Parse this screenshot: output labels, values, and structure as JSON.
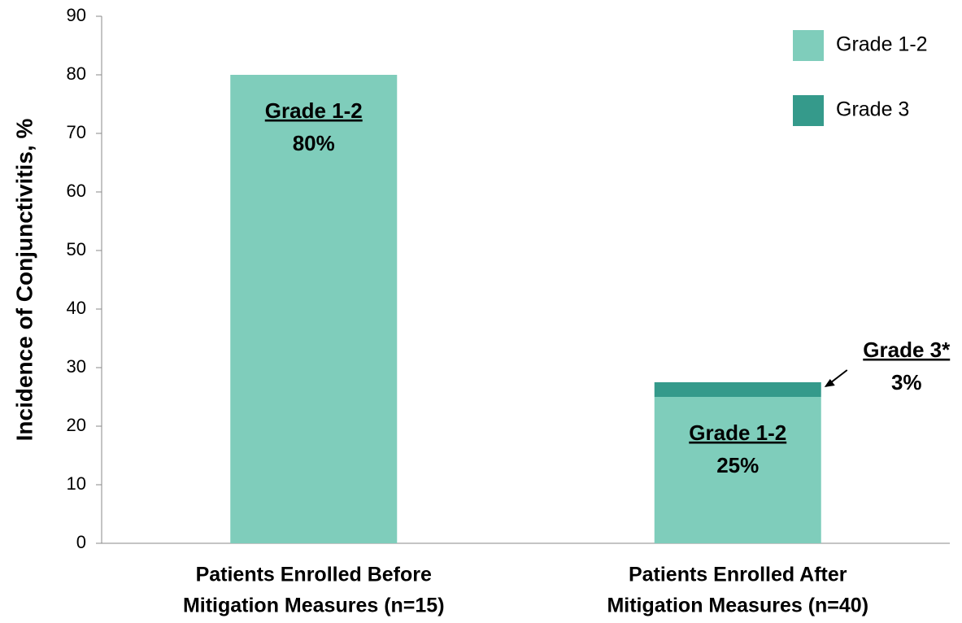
{
  "chart_data": {
    "type": "stacked-bar",
    "y_label": "Incidence of Conjunctivitis, %",
    "categories": [
      [
        "Patients Enrolled Before",
        "Mitigation Measures (n=15)"
      ],
      [
        "Patients Enrolled After",
        "Mitigation Measures (n=40)"
      ]
    ],
    "series": [
      {
        "name": "Grade 1-2",
        "color": "#7fcdbb",
        "values": [
          80,
          25
        ],
        "value_labels": [
          "80%",
          "25%"
        ],
        "label_titles": [
          "Grade 1-2",
          "Grade 1-2"
        ]
      },
      {
        "name": "Grade 3",
        "color": "#359a8b",
        "values": [
          null,
          2.5
        ],
        "value_labels": [
          null,
          "3%"
        ],
        "label_titles": [
          null,
          "Grade 3*"
        ]
      }
    ],
    "ylim": [
      0,
      90
    ],
    "yticks": [
      0,
      10,
      20,
      30,
      40,
      50,
      60,
      70,
      80,
      90
    ],
    "legend": "top-right"
  }
}
